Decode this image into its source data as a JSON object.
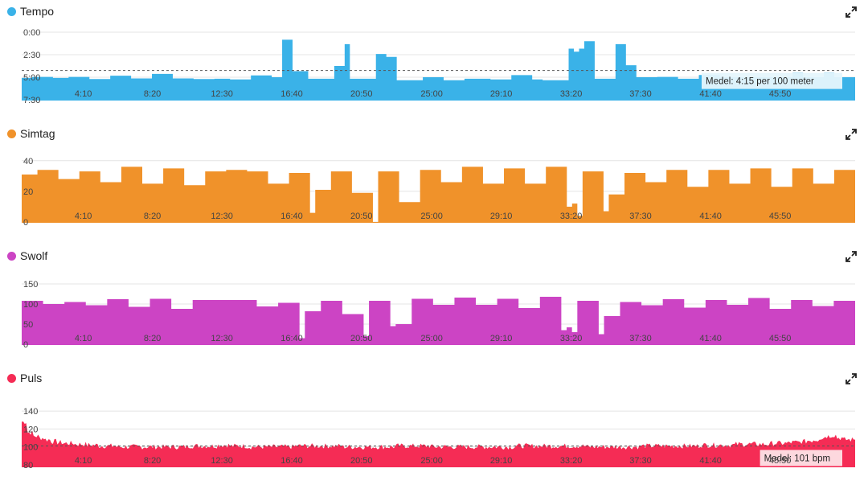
{
  "x_ticks": [
    "4:10",
    "8:20",
    "12:30",
    "16:40",
    "20:50",
    "25:00",
    "29:10",
    "33:20",
    "37:30",
    "41:40",
    "45:50"
  ],
  "chart_data": [
    {
      "type": "area",
      "title": "Tempo",
      "color": "#3ab2e8",
      "y_reversed": true,
      "ylim": [
        0,
        450
      ],
      "yticks": [
        "0:00",
        "2:30",
        "5:00",
        "7:30"
      ],
      "ytick_values": [
        0,
        150,
        300,
        450
      ],
      "average": 255,
      "average_label": "Medel: 4:15 per 100 meter",
      "values": [
        305,
        305,
        298,
        298,
        298,
        298,
        305,
        305,
        305,
        298,
        298,
        298,
        298,
        312,
        312,
        312,
        312,
        290,
        290,
        290,
        290,
        308,
        308,
        308,
        308,
        278,
        278,
        278,
        278,
        308,
        308,
        308,
        308,
        312,
        312,
        312,
        312,
        310,
        310,
        310,
        315,
        315,
        315,
        315,
        288,
        288,
        288,
        288,
        300,
        300,
        50,
        50,
        260,
        260,
        260,
        310,
        310,
        310,
        310,
        310,
        225,
        225,
        80,
        310,
        310,
        310,
        310,
        310,
        145,
        145,
        165,
        165,
        320,
        320,
        320,
        320,
        320,
        300,
        300,
        300,
        300,
        320,
        320,
        320,
        320,
        310,
        310,
        310,
        310,
        310,
        315,
        315,
        315,
        315,
        286,
        286,
        286,
        286,
        315,
        315,
        320,
        320,
        320,
        320,
        320,
        110,
        130,
        110,
        60,
        60,
        310,
        310,
        310,
        310,
        80,
        80,
        220,
        220,
        300,
        300,
        300,
        300,
        298,
        298,
        298,
        298,
        310,
        310,
        310,
        310,
        285,
        285,
        285,
        285,
        300,
        300,
        300,
        300,
        300,
        300,
        300,
        300,
        300,
        300,
        300,
        300,
        300,
        300,
        270,
        270,
        300,
        300,
        300,
        300,
        270,
        270,
        300,
        300,
        300,
        300
      ],
      "xlabel": "",
      "ylabel": ""
    },
    {
      "type": "area",
      "title": "Simtag",
      "color": "#f0922a",
      "ylim": [
        0,
        42
      ],
      "yticks": [
        "40",
        "20",
        "0"
      ],
      "ytick_values": [
        40,
        20,
        0
      ],
      "values": [
        31,
        31,
        31,
        34,
        34,
        34,
        34,
        28,
        28,
        28,
        28,
        33,
        33,
        33,
        33,
        26,
        26,
        26,
        26,
        36,
        36,
        36,
        36,
        25,
        25,
        25,
        25,
        35,
        35,
        35,
        35,
        24,
        24,
        24,
        24,
        33,
        33,
        33,
        33,
        34,
        34,
        34,
        34,
        33,
        33,
        33,
        33,
        25,
        25,
        25,
        25,
        32,
        32,
        32,
        32,
        6,
        21,
        21,
        21,
        33,
        33,
        33,
        33,
        19,
        19,
        19,
        19,
        0,
        33,
        33,
        33,
        33,
        13,
        13,
        13,
        13,
        34,
        34,
        34,
        34,
        26,
        26,
        26,
        26,
        36,
        36,
        36,
        36,
        25,
        25,
        25,
        25,
        35,
        35,
        35,
        35,
        25,
        25,
        25,
        25,
        36,
        36,
        36,
        36,
        10,
        12,
        4,
        33,
        33,
        33,
        33,
        7,
        18,
        18,
        18,
        32,
        32,
        32,
        32,
        26,
        26,
        26,
        26,
        34,
        34,
        34,
        34,
        23,
        23,
        23,
        23,
        34,
        34,
        34,
        34,
        25,
        25,
        25,
        25,
        35,
        35,
        35,
        35,
        23,
        23,
        23,
        23,
        35,
        35,
        35,
        35,
        25,
        25,
        25,
        25,
        34,
        34,
        34,
        34
      ],
      "xlabel": "",
      "ylabel": ""
    },
    {
      "type": "area",
      "title": "Swolf",
      "color": "#cc44c4",
      "ylim": [
        0,
        160
      ],
      "yticks": [
        "150",
        "100",
        "50",
        "0"
      ],
      "ytick_values": [
        150,
        100,
        50,
        0
      ],
      "values": [
        108,
        108,
        108,
        108,
        100,
        100,
        100,
        100,
        105,
        105,
        105,
        105,
        97,
        97,
        97,
        97,
        112,
        112,
        112,
        112,
        93,
        93,
        93,
        93,
        113,
        113,
        113,
        113,
        88,
        88,
        88,
        88,
        110,
        110,
        110,
        110,
        110,
        110,
        110,
        110,
        110,
        110,
        110,
        110,
        94,
        94,
        94,
        94,
        103,
        103,
        103,
        103,
        15,
        82,
        82,
        82,
        108,
        108,
        108,
        108,
        75,
        75,
        75,
        75,
        20,
        108,
        108,
        108,
        108,
        45,
        50,
        50,
        50,
        113,
        113,
        113,
        113,
        98,
        98,
        98,
        98,
        116,
        116,
        116,
        116,
        98,
        98,
        98,
        98,
        113,
        113,
        113,
        113,
        90,
        90,
        90,
        90,
        118,
        118,
        118,
        118,
        35,
        42,
        30,
        108,
        108,
        108,
        108,
        25,
        70,
        70,
        70,
        105,
        105,
        105,
        105,
        97,
        97,
        97,
        97,
        112,
        112,
        112,
        112,
        91,
        91,
        91,
        91,
        110,
        110,
        110,
        110,
        98,
        98,
        98,
        98,
        115,
        115,
        115,
        115,
        88,
        88,
        88,
        88,
        110,
        110,
        110,
        110,
        95,
        95,
        95,
        95,
        108,
        108,
        108,
        108
      ],
      "xlabel": "",
      "ylabel": ""
    },
    {
      "type": "area",
      "title": "Puls",
      "color": "#f52c55",
      "ylim": [
        78,
        150
      ],
      "yticks": [
        "140",
        "120",
        "100",
        "80"
      ],
      "ytick_values": [
        140,
        120,
        100,
        80
      ],
      "average": 101,
      "average_label": "Medel: 101 bpm",
      "values": [
        128,
        116,
        112,
        110,
        108,
        106,
        105,
        104,
        104,
        103,
        103,
        102,
        102,
        101,
        101,
        101,
        100,
        100,
        100,
        100,
        100,
        100,
        100,
        100,
        100,
        100,
        100,
        100,
        101,
        101,
        101,
        101,
        101,
        102,
        102,
        101,
        101,
        101,
        100,
        100,
        100,
        100,
        100,
        100,
        100,
        100,
        101,
        101,
        101,
        101,
        101,
        101,
        101,
        101,
        100,
        100,
        100,
        100,
        100,
        100,
        100,
        100,
        100,
        101,
        101,
        101,
        101,
        101,
        101,
        100,
        100,
        100,
        100,
        100,
        100,
        100,
        100,
        100,
        100,
        100,
        100,
        100,
        100,
        101,
        101,
        101,
        101,
        101,
        101,
        101,
        101,
        101,
        101,
        101,
        101,
        100,
        100,
        100,
        100,
        100,
        100,
        100,
        100,
        100,
        101,
        101,
        101,
        101,
        101,
        101,
        101,
        101,
        101,
        101,
        102,
        102,
        102,
        102,
        102,
        102,
        103,
        103,
        103,
        103,
        103,
        103,
        104,
        104,
        104,
        105,
        105,
        106,
        107,
        108,
        110,
        112,
        113,
        110,
        108,
        108
      ],
      "xlabel": "",
      "ylabel": ""
    }
  ]
}
